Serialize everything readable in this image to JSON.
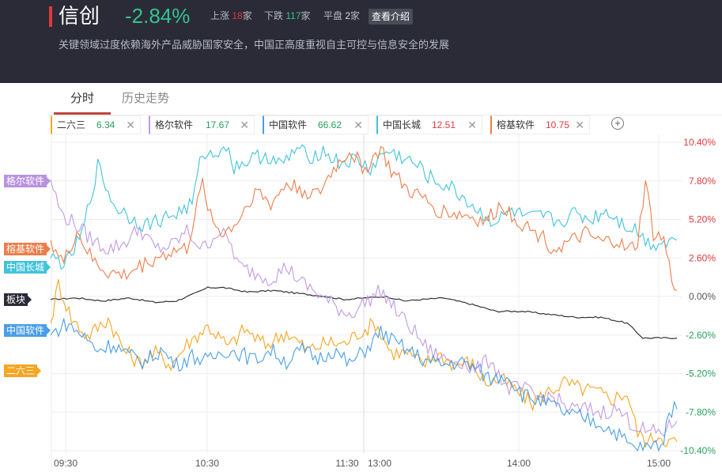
{
  "header": {
    "title": "信创",
    "change": "-2.84%",
    "up_label": "上涨",
    "up_count": "18",
    "up_unit": "家",
    "down_label": "下跌",
    "down_count": "117",
    "down_unit": "家",
    "flat_label": "平盘",
    "flat_count": "2",
    "flat_unit": "家",
    "intro_button": "查看介绍",
    "description": "关键领域过度依赖海外产品威胁国家安全，中国正高度重视自主可控与信息安全的发展"
  },
  "tabs": [
    {
      "label": "分时",
      "active": true
    },
    {
      "label": "历史走势",
      "active": false
    }
  ],
  "stocks": [
    {
      "name": "二六三",
      "value": "6.34",
      "color": "#f5a623",
      "value_color": "#27a05a",
      "close": "✕"
    },
    {
      "name": "格尔软件",
      "value": "17.67",
      "color": "#c29ae6",
      "value_color": "#27a05a",
      "close": "✕"
    },
    {
      "name": "中国软件",
      "value": "66.62",
      "color": "#4a9ee8",
      "value_color": "#27a05a",
      "close": "✕"
    },
    {
      "name": "中国长城",
      "value": "12.51",
      "color": "#42c3da",
      "value_color": "#e0383d",
      "close": "✕"
    },
    {
      "name": "榕基软件",
      "value": "10.75",
      "color": "#ee7d4b",
      "value_color": "#e0383d",
      "close": "✕"
    }
  ],
  "add_button": "+",
  "side_tags": [
    {
      "label": "格尔软件",
      "color": "#b892e0",
      "value": 7.8
    },
    {
      "label": "榕基软件",
      "color": "#ee7d4b",
      "value": 3.2
    },
    {
      "label": "中国长城",
      "color": "#42c3da",
      "value": 2.0
    },
    {
      "label": "板块",
      "color": "#2a2b36",
      "value": -0.2
    },
    {
      "label": "中国软件",
      "color": "#4a9ee8",
      "value": -2.3
    },
    {
      "label": "二六三",
      "color": "#f5a623",
      "value": -5.0
    }
  ],
  "chart_data": {
    "type": "line",
    "x_ticks": [
      "09:30",
      "10:30",
      "11:30",
      "13:00",
      "14:00",
      "15:00"
    ],
    "y_ticks": [
      "10.40%",
      "7.80%",
      "5.20%",
      "2.60%",
      "0.00%",
      "-2.60%",
      "-5.20%",
      "-7.80%",
      "-10.40%"
    ],
    "ylim": [
      -10.4,
      10.4
    ],
    "x_points": 240,
    "grid": true,
    "colors": {
      "up": "#e0383d",
      "zero": "#555555",
      "down": "#27a05a"
    },
    "series": [
      {
        "name": "板块",
        "color": "#333333",
        "keypoints": [
          [
            0,
            -0.2
          ],
          [
            10,
            -0.1
          ],
          [
            20,
            -0.3
          ],
          [
            30,
            -0.1
          ],
          [
            40,
            -0.4
          ],
          [
            48,
            -0.3
          ],
          [
            55,
            0.2
          ],
          [
            60,
            0.6
          ],
          [
            66,
            0.6
          ],
          [
            75,
            0.3
          ],
          [
            85,
            0.4
          ],
          [
            95,
            0.2
          ],
          [
            105,
            0.0
          ],
          [
            112,
            -0.2
          ],
          [
            120,
            -0.1
          ],
          [
            128,
            0.0
          ],
          [
            135,
            -0.3
          ],
          [
            142,
            -0.2
          ],
          [
            150,
            -0.1
          ],
          [
            160,
            -0.5
          ],
          [
            170,
            -1.0
          ],
          [
            180,
            -1.0
          ],
          [
            190,
            -1.2
          ],
          [
            200,
            -1.4
          ],
          [
            210,
            -1.4
          ],
          [
            220,
            -1.8
          ],
          [
            226,
            -2.8
          ],
          [
            232,
            -2.8
          ],
          [
            239,
            -2.8
          ]
        ]
      },
      {
        "name": "二六三",
        "color": "#f5a623",
        "keypoints": [
          [
            0,
            -1.8
          ],
          [
            3,
            0.9
          ],
          [
            8,
            -1.5
          ],
          [
            14,
            -2.7
          ],
          [
            22,
            -1.5
          ],
          [
            28,
            -3.6
          ],
          [
            34,
            -4.5
          ],
          [
            40,
            -3.8
          ],
          [
            46,
            -4.6
          ],
          [
            52,
            -3.2
          ],
          [
            60,
            -2.0
          ],
          [
            68,
            -3.4
          ],
          [
            74,
            -2.2
          ],
          [
            82,
            -3.3
          ],
          [
            90,
            -2.4
          ],
          [
            98,
            -3.6
          ],
          [
            106,
            -3.1
          ],
          [
            112,
            -3.2
          ],
          [
            118,
            -2.4
          ],
          [
            124,
            -1.8
          ],
          [
            130,
            -3.8
          ],
          [
            136,
            -3.8
          ],
          [
            142,
            -4.6
          ],
          [
            148,
            -3.9
          ],
          [
            154,
            -4.6
          ],
          [
            160,
            -4.4
          ],
          [
            166,
            -5.8
          ],
          [
            172,
            -5.6
          ],
          [
            178,
            -6.4
          ],
          [
            184,
            -7.2
          ],
          [
            190,
            -6.4
          ],
          [
            196,
            -5.8
          ],
          [
            202,
            -6.2
          ],
          [
            208,
            -6.4
          ],
          [
            214,
            -6.9
          ],
          [
            220,
            -6.5
          ],
          [
            224,
            -9.2
          ],
          [
            228,
            -9.8
          ],
          [
            232,
            -9.3
          ],
          [
            236,
            -9.8
          ],
          [
            239,
            -9.8
          ]
        ]
      },
      {
        "name": "格尔软件",
        "color": "#c29ae6",
        "keypoints": [
          [
            0,
            7.9
          ],
          [
            4,
            5.6
          ],
          [
            10,
            4.8
          ],
          [
            16,
            3.8
          ],
          [
            22,
            3.2
          ],
          [
            28,
            3.6
          ],
          [
            34,
            4.6
          ],
          [
            40,
            3.2
          ],
          [
            46,
            3.4
          ],
          [
            52,
            4.4
          ],
          [
            58,
            3.2
          ],
          [
            64,
            4.4
          ],
          [
            68,
            3.8
          ],
          [
            72,
            2.0
          ],
          [
            78,
            1.6
          ],
          [
            84,
            1.2
          ],
          [
            90,
            2.0
          ],
          [
            96,
            0.9
          ],
          [
            102,
            0.2
          ],
          [
            108,
            -0.6
          ],
          [
            114,
            -1.2
          ],
          [
            120,
            -0.4
          ],
          [
            126,
            0.4
          ],
          [
            132,
            -1.0
          ],
          [
            138,
            -2.2
          ],
          [
            144,
            -3.6
          ],
          [
            150,
            -4.2
          ],
          [
            156,
            -4.3
          ],
          [
            162,
            -5.0
          ],
          [
            168,
            -4.2
          ],
          [
            174,
            -6.2
          ],
          [
            180,
            -6.2
          ],
          [
            186,
            -6.8
          ],
          [
            192,
            -6.8
          ],
          [
            198,
            -7.6
          ],
          [
            204,
            -7.6
          ],
          [
            210,
            -7.8
          ],
          [
            216,
            -7.6
          ],
          [
            222,
            -8.6
          ],
          [
            228,
            -9.2
          ],
          [
            234,
            -9.1
          ],
          [
            239,
            -8.4
          ]
        ]
      },
      {
        "name": "中国软件",
        "color": "#4a9ee8",
        "keypoints": [
          [
            0,
            -2.6
          ],
          [
            6,
            -1.8
          ],
          [
            12,
            -2.6
          ],
          [
            18,
            -3.6
          ],
          [
            24,
            -3.2
          ],
          [
            30,
            -4.0
          ],
          [
            36,
            -4.4
          ],
          [
            42,
            -3.6
          ],
          [
            48,
            -4.6
          ],
          [
            54,
            -4.0
          ],
          [
            60,
            -4.4
          ],
          [
            66,
            -3.6
          ],
          [
            72,
            -3.8
          ],
          [
            78,
            -4.3
          ],
          [
            84,
            -3.6
          ],
          [
            90,
            -4.4
          ],
          [
            96,
            -3.6
          ],
          [
            102,
            -4.2
          ],
          [
            108,
            -3.6
          ],
          [
            114,
            -4.6
          ],
          [
            120,
            -3.6
          ],
          [
            126,
            -2.4
          ],
          [
            132,
            -3.2
          ],
          [
            138,
            -3.8
          ],
          [
            144,
            -4.4
          ],
          [
            150,
            -4.6
          ],
          [
            156,
            -4.4
          ],
          [
            162,
            -4.8
          ],
          [
            168,
            -5.6
          ],
          [
            174,
            -5.2
          ],
          [
            180,
            -6.6
          ],
          [
            186,
            -7.0
          ],
          [
            192,
            -7.4
          ],
          [
            198,
            -8.0
          ],
          [
            204,
            -8.2
          ],
          [
            210,
            -8.6
          ],
          [
            216,
            -9.2
          ],
          [
            222,
            -10.2
          ],
          [
            228,
            -10.2
          ],
          [
            234,
            -9.8
          ],
          [
            236,
            -7.6
          ],
          [
            239,
            -7.6
          ]
        ]
      },
      {
        "name": "中国长城",
        "color": "#42c3da",
        "keypoints": [
          [
            0,
            2.6
          ],
          [
            6,
            2.2
          ],
          [
            12,
            4.2
          ],
          [
            18,
            8.8
          ],
          [
            24,
            6.2
          ],
          [
            30,
            5.4
          ],
          [
            36,
            4.8
          ],
          [
            42,
            5.2
          ],
          [
            48,
            5.6
          ],
          [
            54,
            6.2
          ],
          [
            58,
            9.8
          ],
          [
            62,
            9.4
          ],
          [
            66,
            10.4
          ],
          [
            70,
            8.8
          ],
          [
            76,
            9.2
          ],
          [
            82,
            9.6
          ],
          [
            88,
            8.8
          ],
          [
            94,
            10.0
          ],
          [
            98,
            9.4
          ],
          [
            104,
            9.8
          ],
          [
            110,
            9.0
          ],
          [
            116,
            9.2
          ],
          [
            122,
            8.6
          ],
          [
            128,
            9.8
          ],
          [
            134,
            9.4
          ],
          [
            140,
            8.8
          ],
          [
            146,
            7.8
          ],
          [
            152,
            7.4
          ],
          [
            158,
            6.6
          ],
          [
            164,
            5.6
          ],
          [
            170,
            5.0
          ],
          [
            176,
            5.8
          ],
          [
            182,
            5.2
          ],
          [
            188,
            5.4
          ],
          [
            194,
            5.0
          ],
          [
            200,
            5.6
          ],
          [
            206,
            5.2
          ],
          [
            212,
            5.8
          ],
          [
            218,
            5.0
          ],
          [
            224,
            4.4
          ],
          [
            228,
            3.6
          ],
          [
            232,
            3.6
          ],
          [
            236,
            3.8
          ],
          [
            239,
            3.8
          ]
        ]
      },
      {
        "name": "榕基软件",
        "color": "#ee7d4b",
        "keypoints": [
          [
            0,
            3.8
          ],
          [
            5,
            2.2
          ],
          [
            10,
            4.4
          ],
          [
            16,
            2.4
          ],
          [
            22,
            1.6
          ],
          [
            28,
            1.4
          ],
          [
            34,
            2.0
          ],
          [
            40,
            2.6
          ],
          [
            46,
            3.0
          ],
          [
            52,
            3.2
          ],
          [
            58,
            7.6
          ],
          [
            62,
            5.0
          ],
          [
            66,
            4.2
          ],
          [
            72,
            5.2
          ],
          [
            78,
            7.2
          ],
          [
            84,
            6.2
          ],
          [
            90,
            7.6
          ],
          [
            96,
            7.2
          ],
          [
            102,
            6.8
          ],
          [
            108,
            8.6
          ],
          [
            114,
            9.8
          ],
          [
            120,
            8.6
          ],
          [
            126,
            10.0
          ],
          [
            130,
            8.4
          ],
          [
            136,
            7.2
          ],
          [
            142,
            6.6
          ],
          [
            148,
            5.8
          ],
          [
            154,
            5.6
          ],
          [
            160,
            5.4
          ],
          [
            166,
            5.0
          ],
          [
            172,
            6.2
          ],
          [
            178,
            5.2
          ],
          [
            184,
            4.4
          ],
          [
            188,
            4.0
          ],
          [
            192,
            3.2
          ],
          [
            198,
            3.6
          ],
          [
            204,
            4.2
          ],
          [
            210,
            3.6
          ],
          [
            216,
            3.8
          ],
          [
            220,
            3.0
          ],
          [
            224,
            3.6
          ],
          [
            227,
            7.8
          ],
          [
            230,
            4.2
          ],
          [
            234,
            3.8
          ],
          [
            237,
            1.2
          ],
          [
            239,
            0.4
          ]
        ]
      }
    ]
  }
}
